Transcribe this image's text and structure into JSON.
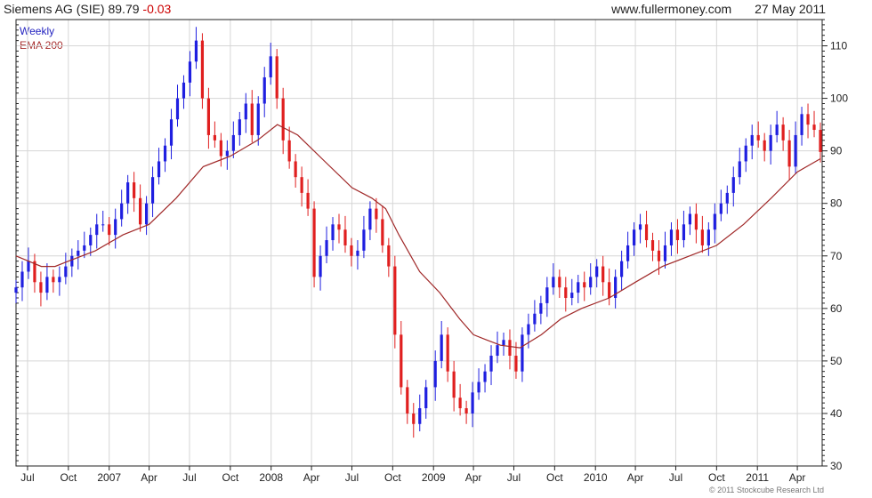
{
  "header": {
    "title": "Siemens AG (SIE)",
    "last_price": "89.79",
    "change": "-0.03",
    "site": "www.fullermoney.com",
    "date": "27 May 2011"
  },
  "legend": {
    "weekly": "Weekly",
    "ema": "EMA 200"
  },
  "copyright": "© 2011 Stockcube Research Ltd",
  "colors": {
    "up": "#1f1fe0",
    "down": "#e01f1f",
    "ema": "#a02828",
    "grid": "#d6d6d6",
    "axis": "#222222"
  },
  "chart_data": {
    "type": "candlestick",
    "frequency": "Weekly",
    "x_tick_labels": [
      "Jul",
      "Oct",
      "2007",
      "Apr",
      "Jul",
      "Oct",
      "2008",
      "Apr",
      "Jul",
      "Oct",
      "2009",
      "Apr",
      "Jul",
      "Oct",
      "2010",
      "Apr",
      "Jul",
      "Oct",
      "2011",
      "Apr"
    ],
    "x_range": [
      "2006-06-05",
      "2011-05-27"
    ],
    "y_ticks": [
      30,
      40,
      50,
      60,
      70,
      80,
      90,
      100,
      110
    ],
    "ylim": [
      30,
      115
    ],
    "grid": true,
    "legend_position": "top-left",
    "series": [
      {
        "name": "Weekly",
        "kind": "close",
        "points": [
          [
            "2006-06-05",
            64
          ],
          [
            "2006-06-19",
            67
          ],
          [
            "2006-07-03",
            69
          ],
          [
            "2006-07-17",
            65
          ],
          [
            "2006-07-31",
            63
          ],
          [
            "2006-08-14",
            66
          ],
          [
            "2006-08-28",
            65
          ],
          [
            "2006-09-11",
            66
          ],
          [
            "2006-09-25",
            68
          ],
          [
            "2006-10-09",
            70
          ],
          [
            "2006-10-23",
            71
          ],
          [
            "2006-11-06",
            72
          ],
          [
            "2006-11-20",
            74
          ],
          [
            "2006-12-04",
            76
          ],
          [
            "2006-12-18",
            76
          ],
          [
            "2007-01-01",
            74
          ],
          [
            "2007-01-15",
            77
          ],
          [
            "2007-01-29",
            80
          ],
          [
            "2007-02-12",
            84
          ],
          [
            "2007-02-26",
            81
          ],
          [
            "2007-03-12",
            76
          ],
          [
            "2007-03-26",
            80
          ],
          [
            "2007-04-09",
            85
          ],
          [
            "2007-04-23",
            88
          ],
          [
            "2007-05-07",
            91
          ],
          [
            "2007-05-21",
            96
          ],
          [
            "2007-06-04",
            100
          ],
          [
            "2007-06-18",
            103
          ],
          [
            "2007-07-02",
            107
          ],
          [
            "2007-07-16",
            111
          ],
          [
            "2007-07-30",
            100
          ],
          [
            "2007-08-13",
            93
          ],
          [
            "2007-08-27",
            92
          ],
          [
            "2007-09-10",
            89
          ],
          [
            "2007-09-24",
            90
          ],
          [
            "2007-10-08",
            93
          ],
          [
            "2007-10-22",
            96
          ],
          [
            "2007-11-05",
            99
          ],
          [
            "2007-11-19",
            93
          ],
          [
            "2007-12-03",
            99
          ],
          [
            "2007-12-17",
            104
          ],
          [
            "2007-12-31",
            108
          ],
          [
            "2008-01-14",
            100
          ],
          [
            "2008-01-28",
            92
          ],
          [
            "2008-02-11",
            88
          ],
          [
            "2008-02-25",
            85
          ],
          [
            "2008-03-10",
            82
          ],
          [
            "2008-03-24",
            79
          ],
          [
            "2008-04-07",
            66
          ],
          [
            "2008-04-21",
            70
          ],
          [
            "2008-05-05",
            73
          ],
          [
            "2008-05-19",
            76
          ],
          [
            "2008-06-02",
            75
          ],
          [
            "2008-06-16",
            72
          ],
          [
            "2008-06-30",
            70
          ],
          [
            "2008-07-14",
            71
          ],
          [
            "2008-07-28",
            75
          ],
          [
            "2008-08-11",
            79
          ],
          [
            "2008-08-25",
            77
          ],
          [
            "2008-09-08",
            72
          ],
          [
            "2008-09-22",
            68
          ],
          [
            "2008-10-06",
            55
          ],
          [
            "2008-10-20",
            45
          ],
          [
            "2008-11-03",
            40
          ],
          [
            "2008-11-17",
            38
          ],
          [
            "2008-12-01",
            41
          ],
          [
            "2008-12-15",
            45
          ],
          [
            "2009-01-05",
            50
          ],
          [
            "2009-01-19",
            55
          ],
          [
            "2009-02-02",
            48
          ],
          [
            "2009-02-16",
            43
          ],
          [
            "2009-03-02",
            41
          ],
          [
            "2009-03-16",
            40
          ],
          [
            "2009-03-30",
            44
          ],
          [
            "2009-04-13",
            46
          ],
          [
            "2009-04-27",
            48
          ],
          [
            "2009-05-11",
            51
          ],
          [
            "2009-05-25",
            53
          ],
          [
            "2009-06-08",
            54
          ],
          [
            "2009-06-22",
            51
          ],
          [
            "2009-07-06",
            48
          ],
          [
            "2009-07-20",
            55
          ],
          [
            "2009-08-03",
            57
          ],
          [
            "2009-08-17",
            59
          ],
          [
            "2009-08-31",
            61
          ],
          [
            "2009-09-14",
            64
          ],
          [
            "2009-09-28",
            66
          ],
          [
            "2009-10-12",
            64
          ],
          [
            "2009-10-26",
            62
          ],
          [
            "2009-11-09",
            63
          ],
          [
            "2009-11-23",
            65
          ],
          [
            "2009-12-07",
            64
          ],
          [
            "2009-12-21",
            66
          ],
          [
            "2010-01-04",
            68
          ],
          [
            "2010-01-18",
            65
          ],
          [
            "2010-02-01",
            62
          ],
          [
            "2010-02-15",
            66
          ],
          [
            "2010-03-01",
            69
          ],
          [
            "2010-03-15",
            72
          ],
          [
            "2010-03-29",
            75
          ],
          [
            "2010-04-12",
            76
          ],
          [
            "2010-04-26",
            73
          ],
          [
            "2010-05-10",
            71
          ],
          [
            "2010-05-24",
            69
          ],
          [
            "2010-06-07",
            72
          ],
          [
            "2010-06-21",
            75
          ],
          [
            "2010-07-05",
            73
          ],
          [
            "2010-07-19",
            76
          ],
          [
            "2010-08-02",
            78
          ],
          [
            "2010-08-16",
            75
          ],
          [
            "2010-08-30",
            72
          ],
          [
            "2010-09-13",
            75
          ],
          [
            "2010-09-27",
            78
          ],
          [
            "2010-10-11",
            80
          ],
          [
            "2010-10-25",
            82
          ],
          [
            "2010-11-08",
            85
          ],
          [
            "2010-11-22",
            88
          ],
          [
            "2010-12-06",
            91
          ],
          [
            "2010-12-20",
            93
          ],
          [
            "2011-01-03",
            92
          ],
          [
            "2011-01-17",
            90
          ],
          [
            "2011-01-31",
            93
          ],
          [
            "2011-02-14",
            95
          ],
          [
            "2011-02-28",
            92
          ],
          [
            "2011-03-14",
            87
          ],
          [
            "2011-03-28",
            93
          ],
          [
            "2011-04-11",
            97
          ],
          [
            "2011-04-25",
            95
          ],
          [
            "2011-05-09",
            94
          ],
          [
            "2011-05-23",
            89.79
          ]
        ]
      },
      {
        "name": "EMA 200",
        "kind": "line",
        "points": [
          [
            "2006-06-05",
            70
          ],
          [
            "2006-08-01",
            68
          ],
          [
            "2006-09-01",
            68
          ],
          [
            "2006-10-01",
            69
          ],
          [
            "2006-12-01",
            71
          ],
          [
            "2007-02-01",
            74
          ],
          [
            "2007-04-01",
            76
          ],
          [
            "2007-06-01",
            81
          ],
          [
            "2007-08-01",
            87
          ],
          [
            "2007-10-01",
            89
          ],
          [
            "2007-12-01",
            92
          ],
          [
            "2008-01-15",
            95
          ],
          [
            "2008-03-01",
            93
          ],
          [
            "2008-05-01",
            88
          ],
          [
            "2008-07-01",
            83
          ],
          [
            "2008-08-15",
            81
          ],
          [
            "2008-09-15",
            79
          ],
          [
            "2008-10-15",
            74
          ],
          [
            "2008-12-01",
            67
          ],
          [
            "2009-01-15",
            63
          ],
          [
            "2009-03-01",
            58
          ],
          [
            "2009-04-01",
            55
          ],
          [
            "2009-05-01",
            54
          ],
          [
            "2009-06-01",
            53
          ],
          [
            "2009-07-15",
            52.5
          ],
          [
            "2009-09-01",
            55
          ],
          [
            "2009-10-15",
            58
          ],
          [
            "2009-12-01",
            60
          ],
          [
            "2010-02-01",
            62
          ],
          [
            "2010-04-01",
            65
          ],
          [
            "2010-06-01",
            68
          ],
          [
            "2010-08-01",
            70
          ],
          [
            "2010-10-01",
            72
          ],
          [
            "2010-12-01",
            76
          ],
          [
            "2011-02-01",
            81
          ],
          [
            "2011-04-01",
            86
          ],
          [
            "2011-05-23",
            88.5
          ]
        ]
      }
    ]
  }
}
